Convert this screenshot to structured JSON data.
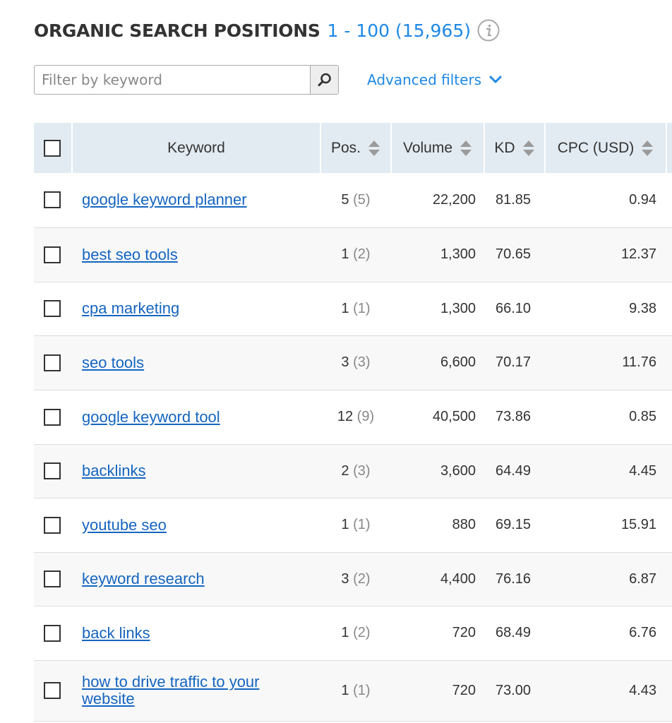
{
  "header": {
    "title": "ORGANIC SEARCH POSITIONS",
    "range": "1 - 100 (15,965)",
    "info_icon": "info-icon"
  },
  "filter": {
    "placeholder": "Filter by keyword",
    "value": "",
    "search_icon": "search-icon",
    "advanced_label": "Advanced filters",
    "advanced_icon": "chevron-down-icon"
  },
  "table": {
    "columns": {
      "keyword": "Keyword",
      "pos": "Pos.",
      "volume": "Volume",
      "kd": "KD",
      "cpc": "CPC (USD)"
    },
    "rows": [
      {
        "keyword": "google keyword planner",
        "pos": "5",
        "prev": "(5)",
        "volume": "22,200",
        "kd": "81.85",
        "cpc": "0.94"
      },
      {
        "keyword": "best seo tools",
        "pos": "1",
        "prev": "(2)",
        "volume": "1,300",
        "kd": "70.65",
        "cpc": "12.37"
      },
      {
        "keyword": "cpa marketing",
        "pos": "1",
        "prev": "(1)",
        "volume": "1,300",
        "kd": "66.10",
        "cpc": "9.38"
      },
      {
        "keyword": "seo tools",
        "pos": "3",
        "prev": "(3)",
        "volume": "6,600",
        "kd": "70.17",
        "cpc": "11.76"
      },
      {
        "keyword": "google keyword tool",
        "pos": "12",
        "prev": "(9)",
        "volume": "40,500",
        "kd": "73.86",
        "cpc": "0.85"
      },
      {
        "keyword": "backlinks",
        "pos": "2",
        "prev": "(3)",
        "volume": "3,600",
        "kd": "64.49",
        "cpc": "4.45"
      },
      {
        "keyword": "youtube seo",
        "pos": "1",
        "prev": "(1)",
        "volume": "880",
        "kd": "69.15",
        "cpc": "15.91"
      },
      {
        "keyword": "keyword research",
        "pos": "3",
        "prev": "(2)",
        "volume": "4,400",
        "kd": "76.16",
        "cpc": "6.87"
      },
      {
        "keyword": "back links",
        "pos": "1",
        "prev": "(2)",
        "volume": "720",
        "kd": "68.49",
        "cpc": "6.76"
      },
      {
        "keyword": "how to drive traffic to your website",
        "pos": "1",
        "prev": "(1)",
        "volume": "720",
        "kd": "73.00",
        "cpc": "4.43"
      }
    ]
  },
  "colors": {
    "accent": "#1e88e5",
    "link": "#1565c0",
    "header_bg": "#e3ebf2",
    "muted": "#888888"
  }
}
